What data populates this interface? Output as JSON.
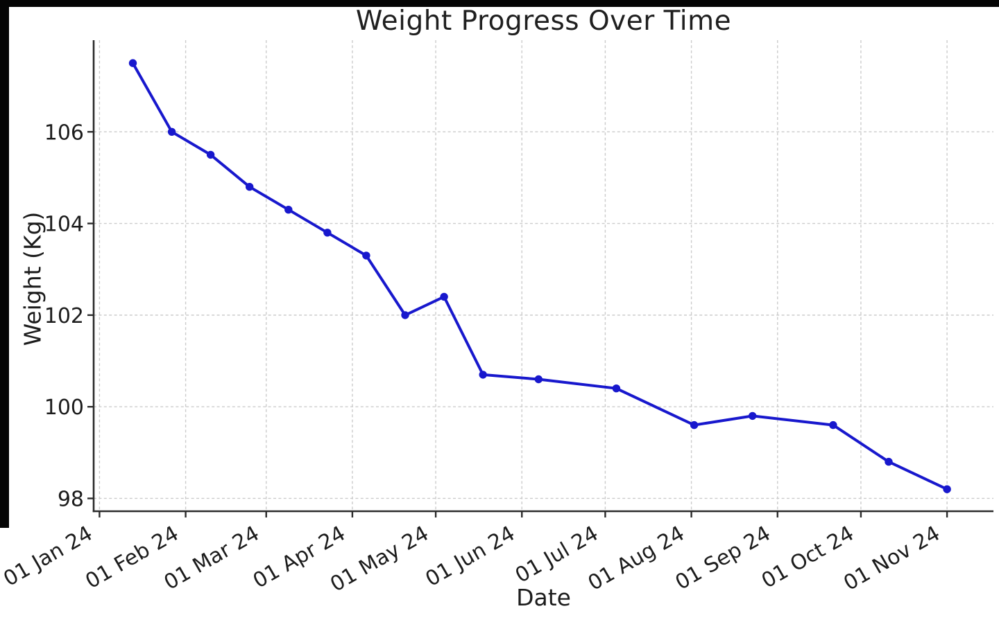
{
  "figure": {
    "title": "Weight Progress Over Time",
    "xlabel": "Date",
    "ylabel": "Weight (Kg)"
  },
  "chart_data": {
    "type": "line",
    "title": "Weight Progress Over Time",
    "xlabel": "Date",
    "ylabel": "Weight (Kg)",
    "legend": "none",
    "grid": {
      "visible": true,
      "style": "dashed",
      "color": "#cbcbcb"
    },
    "axis_color": "#2b2b2b",
    "tick_text_color": "#1c1c1c",
    "ylim": [
      97.72,
      108.0
    ],
    "xlim_days": [
      -2.1,
      321.7
    ],
    "y_ticks": [
      98,
      100,
      102,
      104,
      106
    ],
    "x_ticks": [
      {
        "label": "01 Jan 24",
        "day": 0
      },
      {
        "label": "01 Feb 24",
        "day": 31
      },
      {
        "label": "01 Mar 24",
        "day": 60
      },
      {
        "label": "01 Apr 24",
        "day": 91
      },
      {
        "label": "01 May 24",
        "day": 121
      },
      {
        "label": "01 Jun 24",
        "day": 152
      },
      {
        "label": "01 Jul 24",
        "day": 182
      },
      {
        "label": "01 Aug 24",
        "day": 213
      },
      {
        "label": "01 Sep 24",
        "day": 244
      },
      {
        "label": "01 Oct 24",
        "day": 274
      },
      {
        "label": "01 Nov 24",
        "day": 305
      }
    ],
    "series": [
      {
        "name": "Weight (Kg)",
        "color": "#1818cd",
        "marker": "circle",
        "marker_radius": 5.7,
        "line_width": 4,
        "points": [
          {
            "date": "13 Jan 24",
            "day": 12,
            "value": 107.5
          },
          {
            "date": "27 Jan 24",
            "day": 26,
            "value": 106.0
          },
          {
            "date": "10 Feb 24",
            "day": 40,
            "value": 105.5
          },
          {
            "date": "24 Feb 24",
            "day": 54,
            "value": 104.8
          },
          {
            "date": "09 Mar 24",
            "day": 68,
            "value": 104.3
          },
          {
            "date": "23 Mar 24",
            "day": 82,
            "value": 103.8
          },
          {
            "date": "06 Apr 24",
            "day": 96,
            "value": 103.3
          },
          {
            "date": "20 Apr 24",
            "day": 110,
            "value": 102.0
          },
          {
            "date": "04 May 24",
            "day": 124,
            "value": 102.4
          },
          {
            "date": "18 May 24",
            "day": 138,
            "value": 100.7
          },
          {
            "date": "07 Jun 24",
            "day": 158,
            "value": 100.6
          },
          {
            "date": "05 Jul 24",
            "day": 186,
            "value": 100.4
          },
          {
            "date": "02 Aug 24",
            "day": 214,
            "value": 99.6
          },
          {
            "date": "23 Aug 24",
            "day": 235,
            "value": 99.8
          },
          {
            "date": "21 Sep 24",
            "day": 264,
            "value": 99.6
          },
          {
            "date": "11 Oct 24",
            "day": 284,
            "value": 98.8
          },
          {
            "date": "01 Nov 24",
            "day": 305,
            "value": 98.2
          }
        ]
      }
    ]
  }
}
